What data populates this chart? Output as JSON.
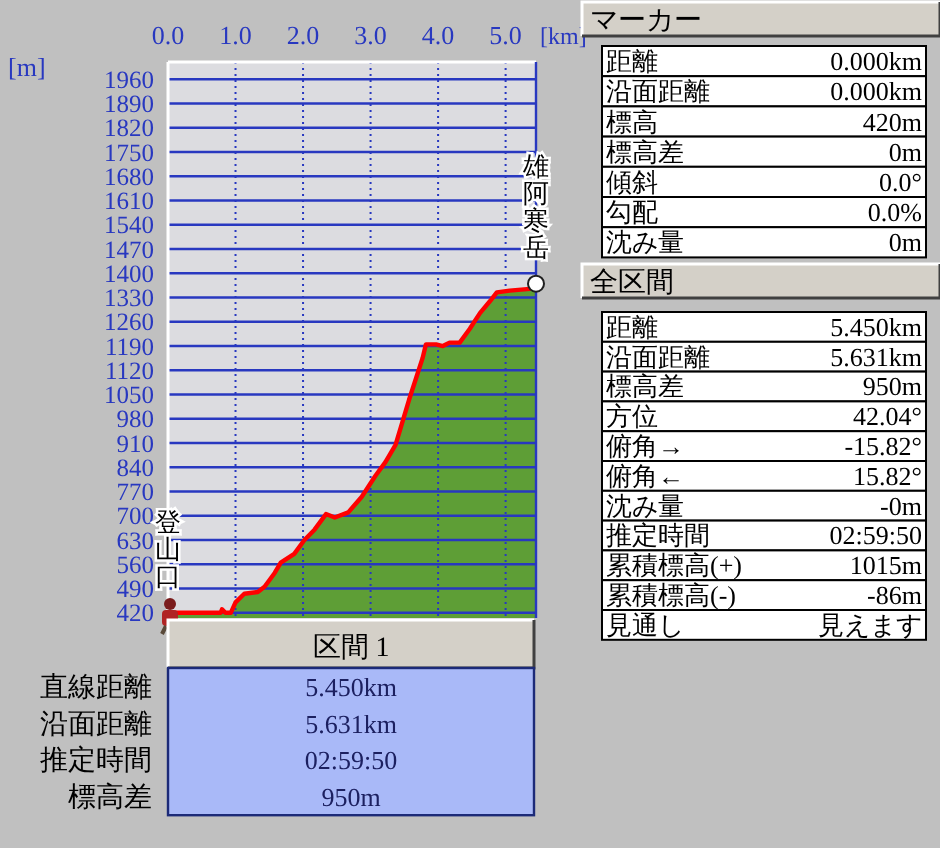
{
  "chart_data": [
    {
      "type": "area",
      "xlabel": "[km]",
      "ylabel": "[m]",
      "xlim": [
        0,
        5.45
      ],
      "ylim": [
        405,
        2010
      ],
      "xticks": [
        {
          "value": 0,
          "label": "0.0"
        },
        {
          "value": 1,
          "label": "1.0"
        },
        {
          "value": 2,
          "label": "2.0"
        },
        {
          "value": 3,
          "label": "3.0"
        },
        {
          "value": 4,
          "label": "4.0"
        },
        {
          "value": 5,
          "label": "5.0"
        }
      ],
      "yticks": [
        420,
        490,
        560,
        630,
        700,
        770,
        840,
        910,
        980,
        1050,
        1120,
        1190,
        1260,
        1330,
        1400,
        1470,
        1540,
        1610,
        1680,
        1750,
        1820,
        1890,
        1960
      ],
      "grid": true,
      "series": [
        {
          "type": "area",
          "color": "#5e9e36",
          "x": [
            0,
            0.5,
            0.78,
            0.8,
            0.85,
            0.93,
            1.0,
            1.13,
            1.33,
            1.43,
            1.58,
            1.67,
            1.87,
            2.02,
            2.17,
            2.34,
            2.47,
            2.67,
            2.87,
            3.07,
            3.22,
            3.37,
            3.47,
            3.57,
            3.67,
            3.77,
            3.82,
            3.97,
            4.07,
            4.17,
            4.32,
            4.47,
            4.62,
            4.77,
            4.87,
            5.06,
            5.36,
            5.45
          ],
          "values": [
            420,
            420,
            420,
            430,
            420,
            420,
            450,
            475,
            480,
            495,
            535,
            565,
            590,
            630,
            660,
            705,
            695,
            710,
            755,
            815,
            855,
            905,
            970,
            1035,
            1095,
            1155,
            1195,
            1195,
            1190,
            1200,
            1200,
            1240,
            1285,
            1320,
            1345,
            1350,
            1355,
            1370
          ]
        },
        {
          "type": "line",
          "color": "#ff0000",
          "x": [
            0,
            0.5,
            0.78,
            0.8,
            0.85,
            0.93,
            1.0,
            1.13,
            1.33,
            1.43,
            1.58,
            1.67,
            1.87,
            2.02,
            2.17,
            2.34,
            2.47,
            2.67,
            2.87,
            3.07,
            3.22,
            3.37,
            3.47,
            3.57,
            3.67,
            3.77,
            3.82,
            3.97,
            4.07,
            4.17,
            4.32,
            4.47,
            4.62,
            4.77,
            4.87,
            5.06,
            5.36,
            5.45
          ],
          "values": [
            420,
            420,
            420,
            430,
            420,
            420,
            450,
            475,
            480,
            495,
            535,
            565,
            590,
            630,
            660,
            705,
            695,
            710,
            755,
            815,
            855,
            905,
            970,
            1035,
            1095,
            1155,
            1195,
            1195,
            1190,
            1200,
            1200,
            1240,
            1285,
            1320,
            1345,
            1350,
            1355,
            1370
          ]
        },
        {
          "type": "scatter",
          "color": "#ffffff",
          "marker": "circle",
          "x": [
            5.45
          ],
          "values": [
            1370
          ]
        }
      ],
      "annotations": [
        {
          "text": "登山口",
          "x": 0,
          "y": 420
        },
        {
          "text": "雄阿寒岳",
          "x": 5.45,
          "y": 1370
        }
      ]
    },
    {
      "type": "other",
      "title": "マーカー",
      "categories": [
        "距離",
        "沿面距離",
        "標高",
        "標高差",
        "傾斜",
        "勾配",
        "沈み量"
      ],
      "annotations": [
        "0.000km",
        "0.000km",
        "420m",
        "0m",
        "0.0°",
        "0.0%",
        "0m"
      ]
    },
    {
      "type": "other",
      "title": "全区間",
      "categories": [
        "距離",
        "沿面距離",
        "標高差",
        "方位",
        "俯角→",
        "俯角←",
        "沈み量",
        "推定時間",
        "累積標高(+)",
        "累積標高(-)",
        "見通し"
      ],
      "annotations": [
        "5.450km",
        "5.631km",
        "950m",
        "42.04°",
        "-15.82°",
        "15.82°",
        "-0m",
        "02:59:50",
        "1015m",
        "-86m",
        "見えます"
      ]
    },
    {
      "type": "other",
      "title": "区間 1",
      "categories": [
        "直線距離",
        "沿面距離",
        "推定時間",
        "標高差"
      ],
      "annotations": [
        "5.450km",
        "5.631km",
        "02:59:50",
        "950m"
      ]
    }
  ]
}
